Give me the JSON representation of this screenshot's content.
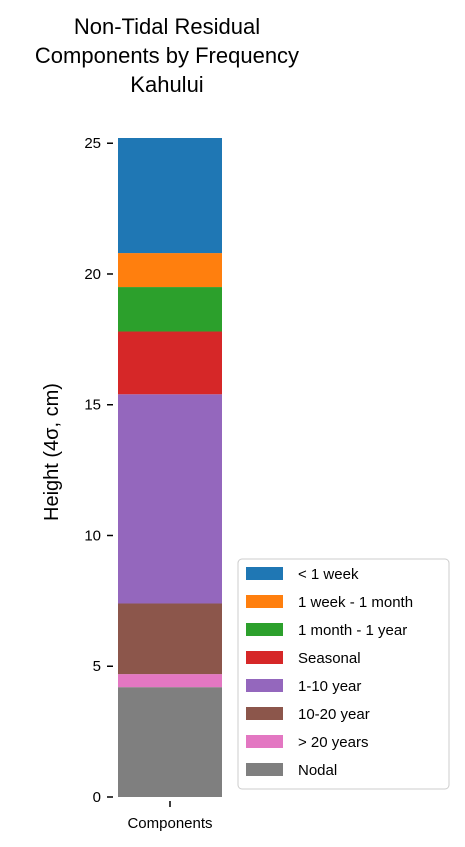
{
  "chart_data": {
    "type": "bar",
    "stacked": true,
    "title_lines": [
      "Non-Tidal Residual",
      "Components by Frequency",
      "Kahului"
    ],
    "xlabel": "",
    "ylabel": "Height (4σ, cm)",
    "ylim": [
      0,
      25.2
    ],
    "yticks": [
      0,
      5,
      10,
      15,
      20,
      25
    ],
    "categories": [
      "Components"
    ],
    "grid": false,
    "legend_position": "lower-right-outside",
    "series": [
      {
        "name": "Nodal",
        "values": [
          4.2
        ],
        "color": "#7f7f7f"
      },
      {
        "name": "> 20 years",
        "values": [
          0.5
        ],
        "color": "#e377c2"
      },
      {
        "name": "10-20 year",
        "values": [
          2.7
        ],
        "color": "#8c564b"
      },
      {
        "name": "1-10 year",
        "values": [
          8.0
        ],
        "color": "#9467bd"
      },
      {
        "name": "Seasonal",
        "values": [
          2.4
        ],
        "color": "#d62728"
      },
      {
        "name": "1 month - 1 year",
        "values": [
          1.7
        ],
        "color": "#2ca02c"
      },
      {
        "name": "1 week - 1 month",
        "values": [
          1.3
        ],
        "color": "#ff7f0e"
      },
      {
        "name": "< 1 week",
        "values": [
          4.4
        ],
        "color": "#1f77b4"
      }
    ],
    "legend_order": [
      "< 1 week",
      "1 week - 1 month",
      "1 month - 1 year",
      "Seasonal",
      "1-10 year",
      "10-20 year",
      "> 20 years",
      "Nodal"
    ]
  }
}
